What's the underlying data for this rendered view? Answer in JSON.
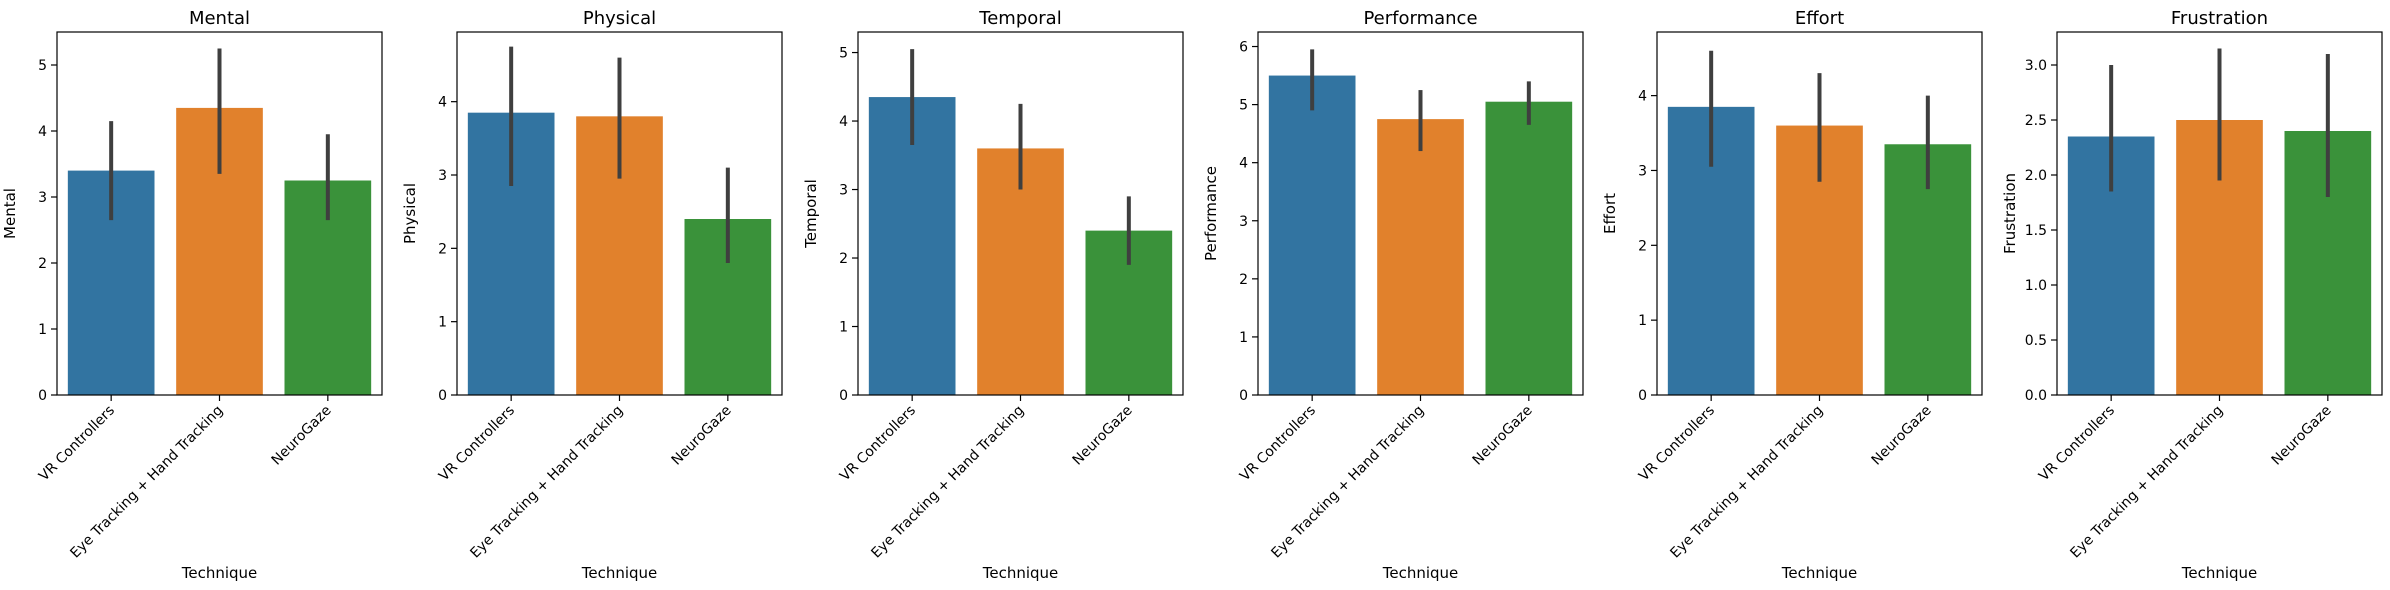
{
  "chart_data": [
    {
      "type": "bar",
      "title": "Mental",
      "xlabel": "Technique",
      "ylabel": "Mental",
      "categories": [
        "VR Controllers",
        "Eye Tracking + Hand Tracking",
        "NeuroGaze"
      ],
      "values": [
        3.4,
        4.35,
        3.25
      ],
      "errors": [
        [
          2.65,
          4.15
        ],
        [
          3.35,
          5.25
        ],
        [
          2.65,
          3.95
        ]
      ],
      "ylim": [
        0,
        5.5
      ],
      "yticks": [
        0,
        1,
        2,
        3,
        4,
        5
      ],
      "ytick_labels": [
        "0",
        "1",
        "2",
        "3",
        "4",
        "5"
      ],
      "colors": [
        "#3274a1",
        "#e1812c",
        "#3a923a"
      ],
      "grid": false
    },
    {
      "type": "bar",
      "title": "Physical",
      "xlabel": "Technique",
      "ylabel": "Physical",
      "categories": [
        "VR Controllers",
        "Eye Tracking + Hand Tracking",
        "NeuroGaze"
      ],
      "values": [
        3.85,
        3.8,
        2.4
      ],
      "errors": [
        [
          2.85,
          4.75
        ],
        [
          2.95,
          4.6
        ],
        [
          1.8,
          3.1
        ]
      ],
      "ylim": [
        0,
        4.95
      ],
      "yticks": [
        0,
        1,
        2,
        3,
        4
      ],
      "ytick_labels": [
        "0",
        "1",
        "2",
        "3",
        "4"
      ],
      "colors": [
        "#3274a1",
        "#e1812c",
        "#3a923a"
      ],
      "grid": false
    },
    {
      "type": "bar",
      "title": "Temporal",
      "xlabel": "Technique",
      "ylabel": "Temporal",
      "categories": [
        "VR Controllers",
        "Eye Tracking + Hand Tracking",
        "NeuroGaze"
      ],
      "values": [
        4.35,
        3.6,
        2.4
      ],
      "errors": [
        [
          3.65,
          5.05
        ],
        [
          3.0,
          4.25
        ],
        [
          1.9,
          2.9
        ]
      ],
      "ylim": [
        0,
        5.3
      ],
      "yticks": [
        0,
        1,
        2,
        3,
        4,
        5
      ],
      "ytick_labels": [
        "0",
        "1",
        "2",
        "3",
        "4",
        "5"
      ],
      "colors": [
        "#3274a1",
        "#e1812c",
        "#3a923a"
      ],
      "grid": false
    },
    {
      "type": "bar",
      "title": "Performance",
      "xlabel": "Technique",
      "ylabel": "Performance",
      "categories": [
        "VR Controllers",
        "Eye Tracking + Hand Tracking",
        "NeuroGaze"
      ],
      "values": [
        5.5,
        4.75,
        5.05
      ],
      "errors": [
        [
          4.9,
          5.95
        ],
        [
          4.2,
          5.25
        ],
        [
          4.65,
          5.4
        ]
      ],
      "ylim": [
        0,
        6.25
      ],
      "yticks": [
        0,
        1,
        2,
        3,
        4,
        5,
        6
      ],
      "ytick_labels": [
        "0",
        "1",
        "2",
        "3",
        "4",
        "5",
        "6"
      ],
      "colors": [
        "#3274a1",
        "#e1812c",
        "#3a923a"
      ],
      "grid": false
    },
    {
      "type": "bar",
      "title": "Effort",
      "xlabel": "Technique",
      "ylabel": "Effort",
      "categories": [
        "VR Controllers",
        "Eye Tracking + Hand Tracking",
        "NeuroGaze"
      ],
      "values": [
        3.85,
        3.6,
        3.35
      ],
      "errors": [
        [
          3.05,
          4.6
        ],
        [
          2.85,
          4.3
        ],
        [
          2.75,
          4.0
        ]
      ],
      "ylim": [
        0,
        4.85
      ],
      "yticks": [
        0,
        1,
        2,
        3,
        4
      ],
      "ytick_labels": [
        "0",
        "1",
        "2",
        "3",
        "4"
      ],
      "colors": [
        "#3274a1",
        "#e1812c",
        "#3a923a"
      ],
      "grid": false
    },
    {
      "type": "bar",
      "title": "Frustration",
      "xlabel": "Technique",
      "ylabel": "Frustration",
      "categories": [
        "VR Controllers",
        "Eye Tracking + Hand Tracking",
        "NeuroGaze"
      ],
      "values": [
        2.35,
        2.5,
        2.4
      ],
      "errors": [
        [
          1.85,
          3.0
        ],
        [
          1.95,
          3.15
        ],
        [
          1.8,
          3.1
        ]
      ],
      "ylim": [
        0,
        3.3
      ],
      "yticks": [
        0,
        0.5,
        1,
        1.5,
        2,
        2.5,
        3
      ],
      "ytick_labels": [
        "0.0",
        "0.5",
        "1.0",
        "1.5",
        "2.0",
        "2.5",
        "3.0"
      ],
      "colors": [
        "#3274a1",
        "#e1812c",
        "#3a923a"
      ],
      "grid": false
    }
  ]
}
